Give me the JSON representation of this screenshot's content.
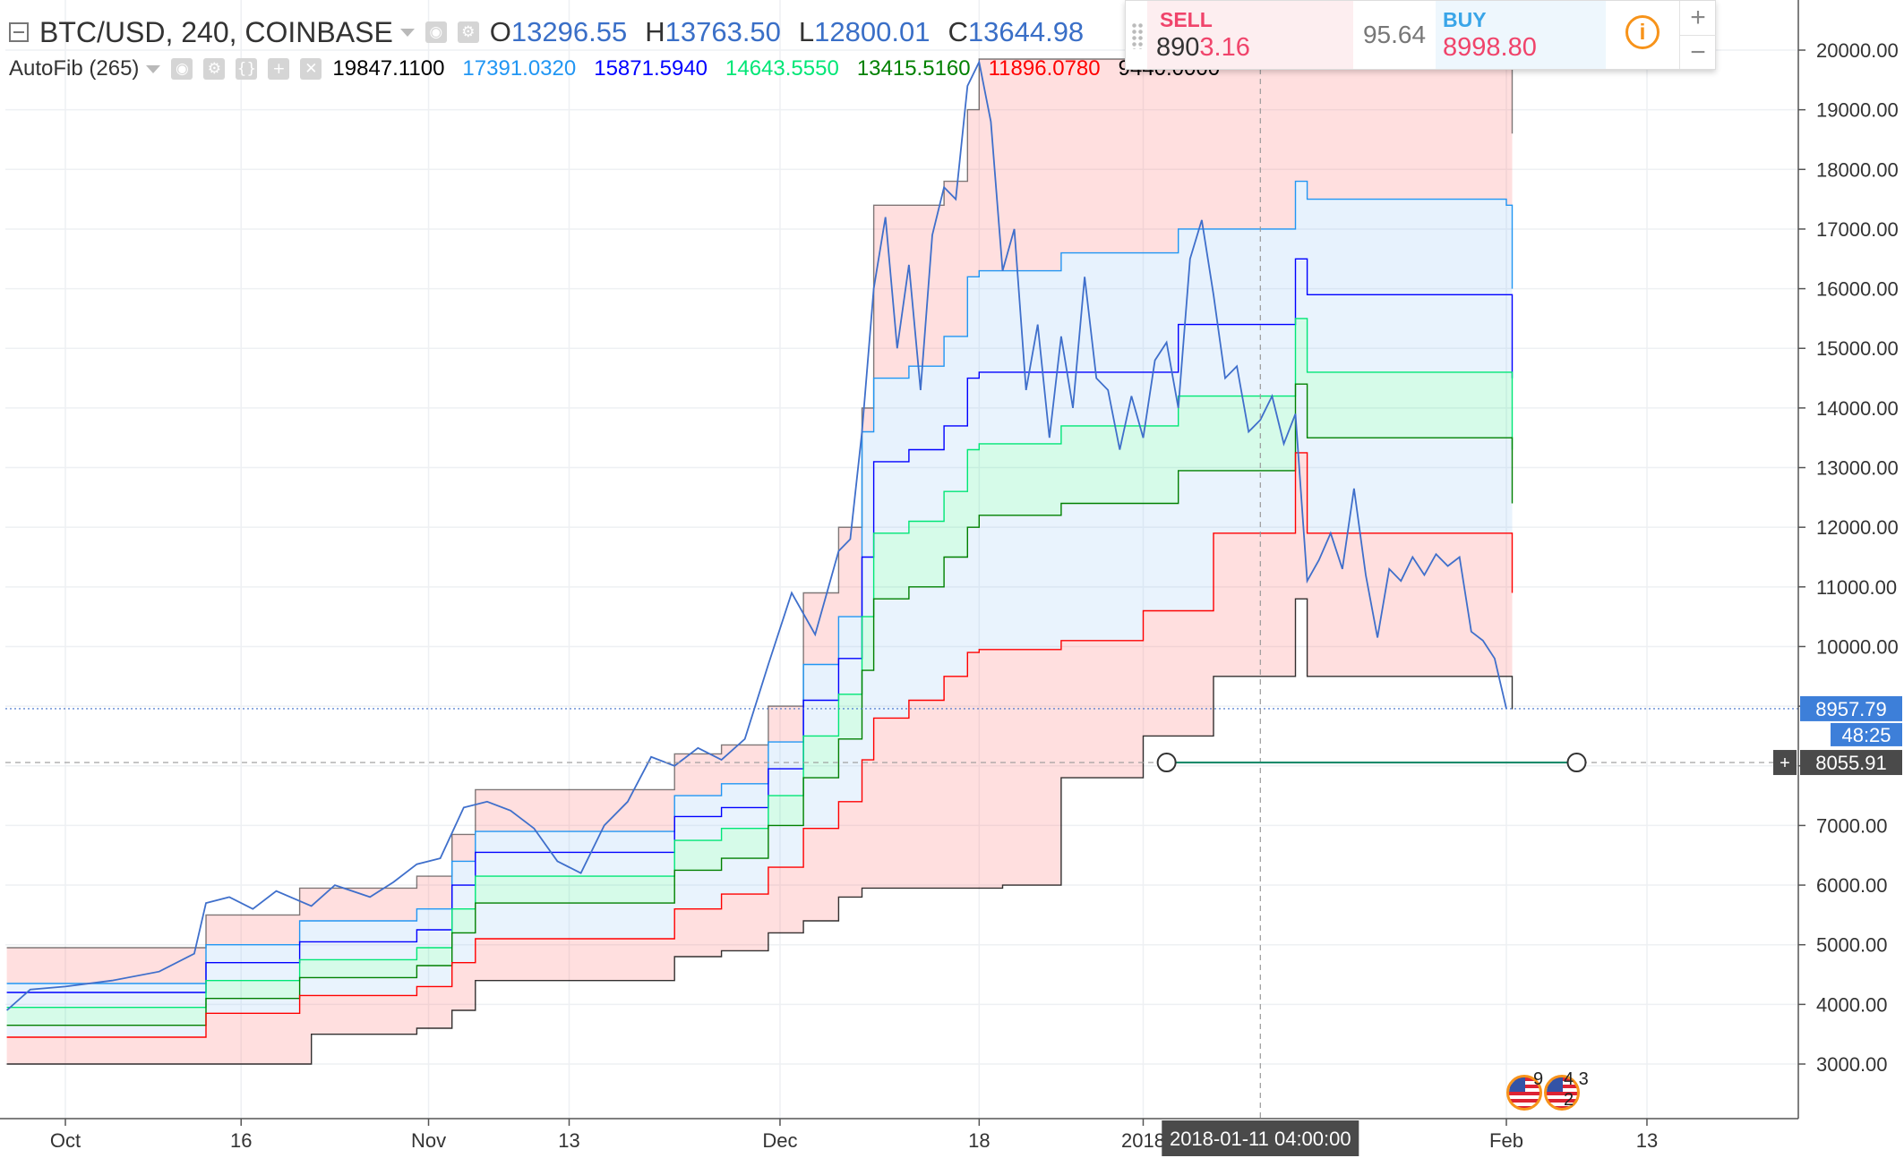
{
  "header": {
    "symbol": "BTC/USD, 240, COINBASE",
    "ohlc": [
      {
        "label": "O",
        "value": "13296.55"
      },
      {
        "label": "H",
        "value": "13763.50"
      },
      {
        "label": "L",
        "value": "12800.01"
      },
      {
        "label": "C",
        "value": "13644.98"
      }
    ],
    "indicator_name": "AutoFib (265)",
    "fib_values": [
      {
        "value": "19847.1100",
        "color": "#000000"
      },
      {
        "value": "17391.0320",
        "color": "#2196f3"
      },
      {
        "value": "15871.5940",
        "color": "#0000ff"
      },
      {
        "value": "14643.5550",
        "color": "#00e676"
      },
      {
        "value": "13415.5160",
        "color": "#008000"
      },
      {
        "value": "11896.0780",
        "color": "#ff0000"
      },
      {
        "value": "9440.0000",
        "color": "#000000"
      }
    ]
  },
  "trade": {
    "sell_label": "SELL",
    "sell_price_prefix": "890",
    "sell_price_suffix": "3.16",
    "spread": "95.64",
    "buy_label": "BUY",
    "buy_price": "8998.80",
    "info_icon": "i",
    "zoom_in": "+",
    "zoom_out": "−"
  },
  "crosshair": {
    "time_label": "2018-01-11 04:00:00",
    "y_label": "8055.91",
    "plus_label": "+"
  },
  "price_badge": {
    "last": "8957.79",
    "countdown": "48:25"
  },
  "timeline": {
    "label1": "9",
    "label2": "4 3 2"
  },
  "chart_data": {
    "type": "line",
    "title": "BTC/USD, 240, COINBASE",
    "y_ticks": [
      "3000.00",
      "4000.00",
      "5000.00",
      "6000.00",
      "7000.00",
      "8000.00",
      "9000.00",
      "10000.00",
      "11000.00",
      "12000.00",
      "13000.00",
      "14000.00",
      "15000.00",
      "16000.00",
      "17000.00",
      "18000.00",
      "19000.00",
      "20000.00"
    ],
    "ylim": [
      2000,
      20900
    ],
    "x_ticks": [
      "Oct",
      "16",
      "Nov",
      "13",
      "Dec",
      "18",
      "2018",
      "Feb",
      "13"
    ],
    "x_tick_days": [
      0,
      15,
      31,
      43,
      61,
      78,
      92,
      123,
      135
    ],
    "xlim_days": [
      -5,
      150
    ],
    "colors": {
      "price": "#3f6fcb",
      "top": "#000000",
      "l786": "#2196f3",
      "l618": "#0000ff",
      "l5": "#00e676",
      "l382": "#008000",
      "l236": "#ff0000",
      "bottom": "#000000",
      "pink_fill": "#ff6f6f",
      "blue_fill": "#90c4f5",
      "green_fill": "#00e676"
    },
    "price_series": {
      "name": "BTC/USD",
      "points": [
        [
          -5,
          3900
        ],
        [
          -3,
          4250
        ],
        [
          0,
          4300
        ],
        [
          4,
          4400
        ],
        [
          8,
          4550
        ],
        [
          11,
          4850
        ],
        [
          12,
          5700
        ],
        [
          14,
          5800
        ],
        [
          16,
          5600
        ],
        [
          18,
          5900
        ],
        [
          21,
          5650
        ],
        [
          23,
          6000
        ],
        [
          26,
          5800
        ],
        [
          28,
          6050
        ],
        [
          30,
          6350
        ],
        [
          32,
          6450
        ],
        [
          34,
          7300
        ],
        [
          36,
          7400
        ],
        [
          38,
          7250
        ],
        [
          40,
          6950
        ],
        [
          42,
          6400
        ],
        [
          44,
          6200
        ],
        [
          46,
          7000
        ],
        [
          48,
          7400
        ],
        [
          50,
          8150
        ],
        [
          52,
          8000
        ],
        [
          54,
          8300
        ],
        [
          56,
          8100
        ],
        [
          58,
          8450
        ],
        [
          60,
          9700
        ],
        [
          62,
          10900
        ],
        [
          64,
          10200
        ],
        [
          65,
          10900
        ],
        [
          66,
          11600
        ],
        [
          67,
          11800
        ],
        [
          68,
          13600
        ],
        [
          69,
          16000
        ],
        [
          70,
          17200
        ],
        [
          71,
          15000
        ],
        [
          72,
          16400
        ],
        [
          73,
          14300
        ],
        [
          74,
          16900
        ],
        [
          75,
          17700
        ],
        [
          76,
          17500
        ],
        [
          77,
          19400
        ],
        [
          78,
          19800
        ],
        [
          79,
          18800
        ],
        [
          80,
          16300
        ],
        [
          81,
          17000
        ],
        [
          82,
          14300
        ],
        [
          83,
          15400
        ],
        [
          84,
          13500
        ],
        [
          85,
          15200
        ],
        [
          86,
          14000
        ],
        [
          87,
          16200
        ],
        [
          88,
          14500
        ],
        [
          89,
          14300
        ],
        [
          90,
          13300
        ],
        [
          91,
          14200
        ],
        [
          92,
          13500
        ],
        [
          93,
          14800
        ],
        [
          94,
          15100
        ],
        [
          95,
          14000
        ],
        [
          96,
          16500
        ],
        [
          97,
          17150
        ],
        [
          98,
          15900
        ],
        [
          99,
          14500
        ],
        [
          100,
          14700
        ],
        [
          101,
          13600
        ],
        [
          102,
          13800
        ],
        [
          103,
          14200
        ],
        [
          104,
          13400
        ],
        [
          105,
          13900
        ],
        [
          106,
          11100
        ],
        [
          107,
          11450
        ],
        [
          108,
          11900
        ],
        [
          109,
          11300
        ],
        [
          110,
          12650
        ],
        [
          111,
          11200
        ],
        [
          112,
          10150
        ],
        [
          113,
          11300
        ],
        [
          114,
          11100
        ],
        [
          115,
          11500
        ],
        [
          116,
          11200
        ],
        [
          117,
          11550
        ],
        [
          118,
          11350
        ],
        [
          119,
          11500
        ],
        [
          120,
          10250
        ],
        [
          121,
          10100
        ],
        [
          122,
          9800
        ],
        [
          123,
          8957.79
        ]
      ]
    },
    "fib_bands": {
      "top": [
        [
          -5,
          4950
        ],
        [
          11,
          4950
        ],
        [
          12,
          5500
        ],
        [
          20,
          5950
        ],
        [
          30,
          6150
        ],
        [
          33,
          6850
        ],
        [
          35,
          7600
        ],
        [
          48,
          7600
        ],
        [
          52,
          8200
        ],
        [
          56,
          8350
        ],
        [
          60,
          9000
        ],
        [
          63,
          10900
        ],
        [
          66,
          12000
        ],
        [
          68,
          14000
        ],
        [
          69,
          17400
        ],
        [
          72,
          17400
        ],
        [
          75,
          17800
        ],
        [
          77,
          19000
        ],
        [
          78,
          19850
        ],
        [
          123,
          19850
        ],
        [
          123.5,
          18600
        ]
      ],
      "l786": [
        [
          -5,
          4350
        ],
        [
          11,
          4350
        ],
        [
          12,
          5000
        ],
        [
          20,
          5400
        ],
        [
          30,
          5600
        ],
        [
          33,
          6400
        ],
        [
          35,
          6900
        ],
        [
          48,
          6900
        ],
        [
          52,
          7500
        ],
        [
          56,
          7700
        ],
        [
          60,
          8400
        ],
        [
          63,
          9700
        ],
        [
          66,
          10500
        ],
        [
          68,
          13600
        ],
        [
          69,
          14500
        ],
        [
          72,
          14700
        ],
        [
          75,
          15200
        ],
        [
          77,
          16200
        ],
        [
          78,
          16300
        ],
        [
          85,
          16600
        ],
        [
          95,
          17000
        ],
        [
          105,
          17800
        ],
        [
          106,
          17500
        ],
        [
          123,
          17400
        ],
        [
          123.5,
          16000
        ]
      ],
      "l618": [
        [
          -5,
          4200
        ],
        [
          11,
          4200
        ],
        [
          12,
          4700
        ],
        [
          20,
          5050
        ],
        [
          30,
          5250
        ],
        [
          33,
          6000
        ],
        [
          35,
          6550
        ],
        [
          48,
          6550
        ],
        [
          52,
          7150
        ],
        [
          56,
          7300
        ],
        [
          60,
          7950
        ],
        [
          63,
          9100
        ],
        [
          66,
          9800
        ],
        [
          68,
          11500
        ],
        [
          69,
          13100
        ],
        [
          72,
          13300
        ],
        [
          75,
          13700
        ],
        [
          77,
          14500
        ],
        [
          78,
          14600
        ],
        [
          85,
          14600
        ],
        [
          95,
          15400
        ],
        [
          105,
          16500
        ],
        [
          106,
          15900
        ],
        [
          123,
          15900
        ],
        [
          123.5,
          14500
        ]
      ],
      "l5": [
        [
          -5,
          3950
        ],
        [
          11,
          3950
        ],
        [
          12,
          4400
        ],
        [
          20,
          4750
        ],
        [
          30,
          4950
        ],
        [
          33,
          5600
        ],
        [
          35,
          6150
        ],
        [
          48,
          6150
        ],
        [
          52,
          6750
        ],
        [
          56,
          6950
        ],
        [
          60,
          7500
        ],
        [
          63,
          8500
        ],
        [
          66,
          9200
        ],
        [
          68,
          10500
        ],
        [
          69,
          11900
        ],
        [
          72,
          12100
        ],
        [
          75,
          12600
        ],
        [
          77,
          13300
        ],
        [
          78,
          13400
        ],
        [
          85,
          13700
        ],
        [
          95,
          14200
        ],
        [
          105,
          15500
        ],
        [
          106,
          14600
        ],
        [
          123,
          14600
        ],
        [
          123.5,
          13300
        ]
      ],
      "l382": [
        [
          -5,
          3650
        ],
        [
          11,
          3650
        ],
        [
          12,
          4100
        ],
        [
          20,
          4450
        ],
        [
          30,
          4650
        ],
        [
          33,
          5200
        ],
        [
          35,
          5700
        ],
        [
          48,
          5700
        ],
        [
          52,
          6250
        ],
        [
          56,
          6450
        ],
        [
          60,
          7000
        ],
        [
          63,
          7800
        ],
        [
          66,
          8450
        ],
        [
          68,
          9600
        ],
        [
          69,
          10800
        ],
        [
          72,
          11000
        ],
        [
          75,
          11500
        ],
        [
          77,
          12000
        ],
        [
          78,
          12200
        ],
        [
          85,
          12400
        ],
        [
          95,
          12950
        ],
        [
          105,
          14400
        ],
        [
          106,
          13500
        ],
        [
          123,
          13500
        ],
        [
          123.5,
          12400
        ]
      ],
      "l236": [
        [
          -5,
          3450
        ],
        [
          11,
          3450
        ],
        [
          12,
          3850
        ],
        [
          20,
          4150
        ],
        [
          30,
          4300
        ],
        [
          33,
          4700
        ],
        [
          35,
          5100
        ],
        [
          48,
          5100
        ],
        [
          52,
          5600
        ],
        [
          56,
          5850
        ],
        [
          60,
          6300
        ],
        [
          63,
          6950
        ],
        [
          66,
          7400
        ],
        [
          68,
          8100
        ],
        [
          69,
          8800
        ],
        [
          72,
          9100
        ],
        [
          75,
          9500
        ],
        [
          77,
          9900
        ],
        [
          78,
          9950
        ],
        [
          85,
          10100
        ],
        [
          92,
          10600
        ],
        [
          98,
          11900
        ],
        [
          105,
          13250
        ],
        [
          106,
          11900
        ],
        [
          123,
          11900
        ],
        [
          123.5,
          10900
        ]
      ],
      "bottom": [
        [
          -5,
          3000
        ],
        [
          11,
          3000
        ],
        [
          12,
          3000
        ],
        [
          20,
          3000
        ],
        [
          21,
          3500
        ],
        [
          30,
          3600
        ],
        [
          33,
          3900
        ],
        [
          35,
          4400
        ],
        [
          48,
          4400
        ],
        [
          52,
          4800
        ],
        [
          56,
          4900
        ],
        [
          60,
          5200
        ],
        [
          63,
          5400
        ],
        [
          66,
          5800
        ],
        [
          68,
          5950
        ],
        [
          69,
          5950
        ],
        [
          72,
          5950
        ],
        [
          75,
          5950
        ],
        [
          77,
          5950
        ],
        [
          78,
          5950
        ],
        [
          80,
          6000
        ],
        [
          85,
          7800
        ],
        [
          92,
          8500
        ],
        [
          98,
          9500
        ],
        [
          105,
          10800
        ],
        [
          106,
          9500
        ],
        [
          123,
          9500
        ],
        [
          123.5,
          8950
        ]
      ]
    },
    "last_price": 8957.79,
    "horizontal_line": {
      "y": 8055.91,
      "x_start": 94,
      "x_end": 129,
      "color": "#1b8a6b"
    },
    "crosshair_x": 102,
    "crosshair_y": 8055.91
  }
}
